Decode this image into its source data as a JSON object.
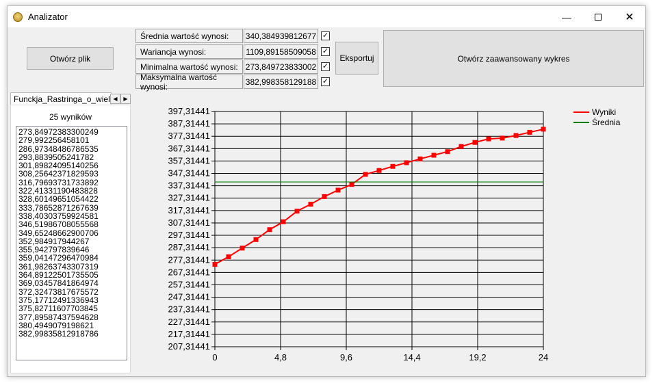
{
  "window": {
    "title": "Analizator"
  },
  "buttons": {
    "open_file": "Otwórz plik",
    "export": "Eksportuj",
    "advanced_chart": "Otwórz zaawansowany wykres"
  },
  "stats": [
    {
      "label": "Średnia wartość wynosi:",
      "value": "340,384939812677",
      "checked": true
    },
    {
      "label": "Wariancja wynosi:",
      "value": "1109,8915850905​8",
      "checked": true
    },
    {
      "label": "Minimalna wartość wynosi:",
      "value": "273,849723833002",
      "checked": true
    },
    {
      "label": "Maksymalna wartość wynosi:",
      "value": "382,998358129188",
      "checked": true
    }
  ],
  "tab": {
    "label": "Funckja_Rastringa_o_wielkosci"
  },
  "results": {
    "count_label": "25 wyników",
    "items": [
      "273,84972383300249",
      "279,992256458101",
      "286,97348486786535",
      "293,8839505241782",
      "301,89824095140256",
      "308,25642371829593",
      "316,79693731733892",
      "322,41331190483828",
      "328,60149651054422",
      "333,78652871267639",
      "338,40303759924581",
      "346,51986708055568",
      "349,65248662900706",
      "352,984917944267",
      "355,942797839646",
      "359,04147296470984",
      "361,98263743307319",
      "364,89122501735505",
      "369,03457841864974",
      "372,32473817675572",
      "375,17712491336943",
      "375,82711607703845",
      "377,89587437594628",
      "380,4949079198621",
      "382,99835812918786"
    ]
  },
  "chart_data": {
    "type": "line",
    "x": [
      0,
      1,
      2,
      3,
      4,
      5,
      6,
      7,
      8,
      9,
      10,
      11,
      12,
      13,
      14,
      15,
      16,
      17,
      18,
      19,
      20,
      21,
      22,
      23,
      24
    ],
    "series": [
      {
        "name": "Wyniki",
        "color": "#ff0000",
        "marker": "square",
        "values": [
          273.85,
          279.99,
          286.97,
          293.88,
          301.9,
          308.26,
          316.8,
          322.41,
          328.6,
          333.79,
          338.4,
          346.52,
          349.65,
          352.98,
          355.94,
          359.04,
          361.98,
          364.89,
          369.03,
          372.32,
          375.18,
          375.83,
          377.9,
          380.49,
          383.0
        ]
      },
      {
        "name": "Średnia",
        "color": "#008000",
        "values": [
          340.38,
          340.38,
          340.38,
          340.38,
          340.38,
          340.38,
          340.38,
          340.38,
          340.38,
          340.38,
          340.38,
          340.38,
          340.38,
          340.38,
          340.38,
          340.38,
          340.38,
          340.38,
          340.38,
          340.38,
          340.38,
          340.38,
          340.38,
          340.38,
          340.38
        ]
      }
    ],
    "xlim": [
      0,
      24
    ],
    "ylim": [
      207.31441,
      397.31441
    ],
    "x_ticks": [
      "0",
      "4,8",
      "9,6",
      "14,4",
      "19,2",
      "24"
    ],
    "y_ticks": [
      "207,31441",
      "217,31441",
      "227,31441",
      "237,31441",
      "247,31441",
      "257,31441",
      "267,31441",
      "277,31441",
      "287,31441",
      "297,31441",
      "307,31441",
      "317,31441",
      "327,31441",
      "337,31441",
      "347,31441",
      "357,31441",
      "367,31441",
      "377,31441",
      "387,31441",
      "397,31441"
    ],
    "grid": true,
    "legend": "top-right"
  }
}
